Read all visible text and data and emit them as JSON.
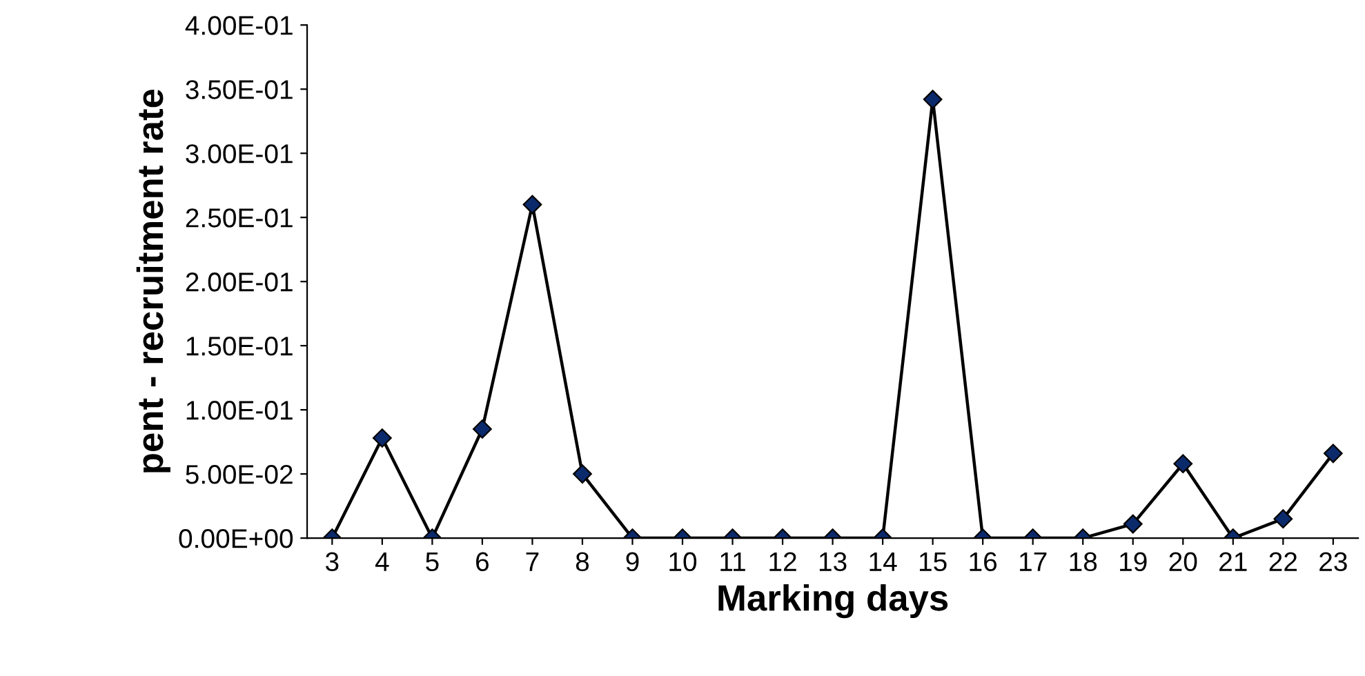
{
  "chart_data": {
    "type": "line",
    "xlabel": "Marking days",
    "ylabel": "pent - recruitment rate",
    "categories": [
      "3",
      "4",
      "5",
      "6",
      "7",
      "8",
      "9",
      "10",
      "11",
      "12",
      "13",
      "14",
      "15",
      "16",
      "17",
      "18",
      "19",
      "20",
      "21",
      "22",
      "23"
    ],
    "series": [
      {
        "color": "#0b2a6b",
        "values": [
          0,
          0.078,
          0,
          0.085,
          0.26,
          0.05,
          0,
          0,
          0,
          0,
          0,
          0,
          0.342,
          0,
          0,
          0,
          0.011,
          0.058,
          0,
          0.015,
          0.066
        ]
      }
    ],
    "ylim": [
      0,
      0.4
    ],
    "yticks": [
      {
        "value": 0,
        "label": "0.00E+00"
      },
      {
        "value": 0.05,
        "label": "5.00E-02"
      },
      {
        "value": 0.1,
        "label": "1.00E-01"
      },
      {
        "value": 0.15,
        "label": "1.50E-01"
      },
      {
        "value": 0.2,
        "label": "2.00E-01"
      },
      {
        "value": 0.25,
        "label": "2.50E-01"
      },
      {
        "value": 0.3,
        "label": "3.00E-01"
      },
      {
        "value": 0.35,
        "label": "3.50E-01"
      },
      {
        "value": 0.4,
        "label": "4.00E-01"
      }
    ],
    "marker": "diamond",
    "grid": false,
    "legend": false
  }
}
